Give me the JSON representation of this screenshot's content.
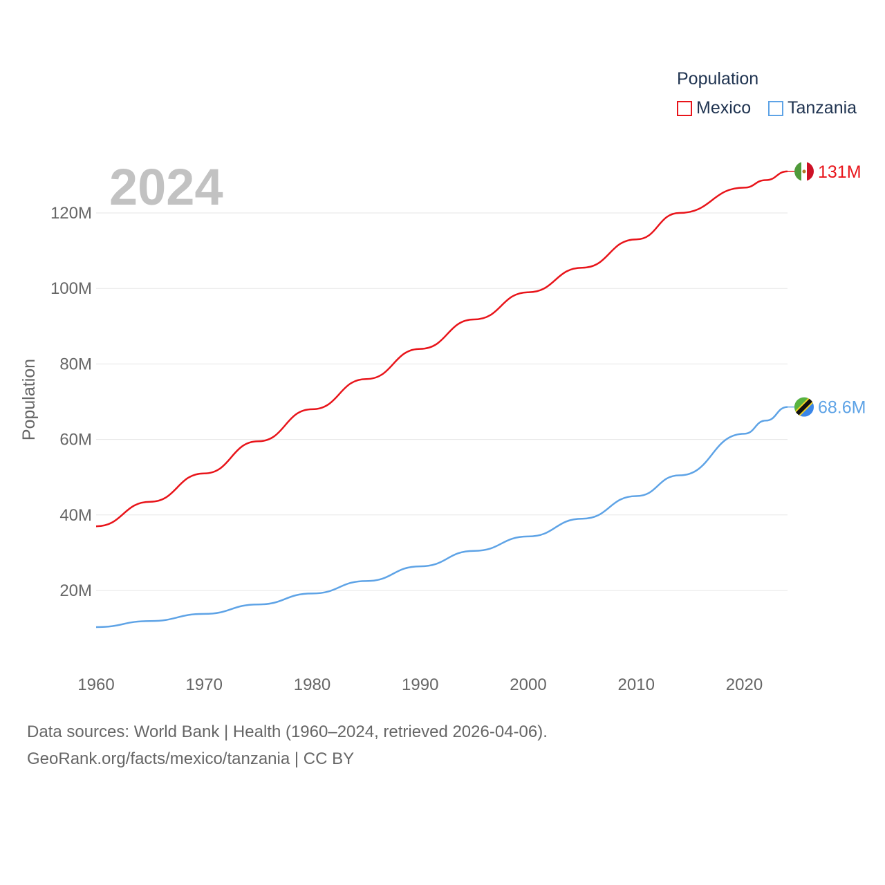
{
  "legend": {
    "title": "Population",
    "items": [
      {
        "label": "Mexico",
        "color": "#e8141a"
      },
      {
        "label": "Tanzania",
        "color": "#5ea3e6"
      }
    ]
  },
  "year_label": "2024",
  "footer": {
    "line1": "Data sources: World Bank | Health (1960–2024, retrieved 2026-04-06).",
    "line2": "GeoRank.org/facts/mexico/tanzania | CC BY"
  },
  "chart_data": {
    "type": "line",
    "title": "",
    "xlabel": "",
    "ylabel": "Population",
    "xlim": [
      1960,
      2024
    ],
    "ylim": [
      0,
      130000000
    ],
    "x_ticks": [
      1960,
      1970,
      1980,
      1990,
      2000,
      2010,
      2020
    ],
    "y_ticks": [
      20000000,
      40000000,
      60000000,
      80000000,
      100000000,
      120000000
    ],
    "y_tick_labels": [
      "20M",
      "40M",
      "60M",
      "80M",
      "100M",
      "120M"
    ],
    "grid": true,
    "legend_position": "top-right",
    "x": [
      1960,
      1965,
      1970,
      1975,
      1980,
      1985,
      1990,
      1995,
      2000,
      2005,
      2010,
      2014,
      2020,
      2022,
      2024
    ],
    "series": [
      {
        "name": "Mexico",
        "color": "#e8141a",
        "end_label": "131M",
        "values": [
          37000000,
          43500000,
          51000000,
          59500000,
          68000000,
          76000000,
          84000000,
          91800000,
          99000000,
          105500000,
          113000000,
          120000000,
          126700000,
          128700000,
          131000000
        ]
      },
      {
        "name": "Tanzania",
        "color": "#5ea3e6",
        "end_label": "68.6M",
        "values": [
          10300000,
          11900000,
          13800000,
          16300000,
          19200000,
          22500000,
          26400000,
          30500000,
          34300000,
          39000000,
          45000000,
          50500000,
          61500000,
          65000000,
          68600000
        ]
      }
    ]
  }
}
